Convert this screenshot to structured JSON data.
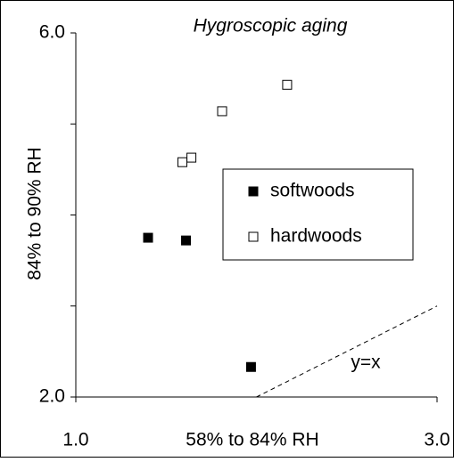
{
  "chart_data": {
    "type": "scatter",
    "title": "Hygroscopic aging",
    "xlabel": "58% to 84% RH",
    "ylabel": "84% to 90% RH",
    "xlim": [
      1,
      3
    ],
    "ylim": [
      2,
      6
    ],
    "xticks": [
      {
        "value": 1,
        "label": "1.0"
      },
      {
        "value": 3,
        "label": "3.0"
      }
    ],
    "yticks": [
      {
        "value": 2,
        "label": "2.0"
      },
      {
        "value": 3,
        "label": null
      },
      {
        "value": 4,
        "label": null
      },
      {
        "value": 5,
        "label": null
      },
      {
        "value": 6,
        "label": "6.0"
      }
    ],
    "series": [
      {
        "name": "softwoods",
        "color": "#000000",
        "filled": true,
        "x": [
          1.4,
          1.61,
          1.97
        ],
        "values": [
          3.75,
          3.72,
          2.33
        ]
      },
      {
        "name": "hardwoods",
        "color": "#000000",
        "filled": false,
        "x": [
          1.59,
          1.64,
          1.81,
          2.17
        ],
        "values": [
          4.58,
          4.63,
          5.14,
          5.43
        ]
      }
    ],
    "annotation": "y=x"
  }
}
